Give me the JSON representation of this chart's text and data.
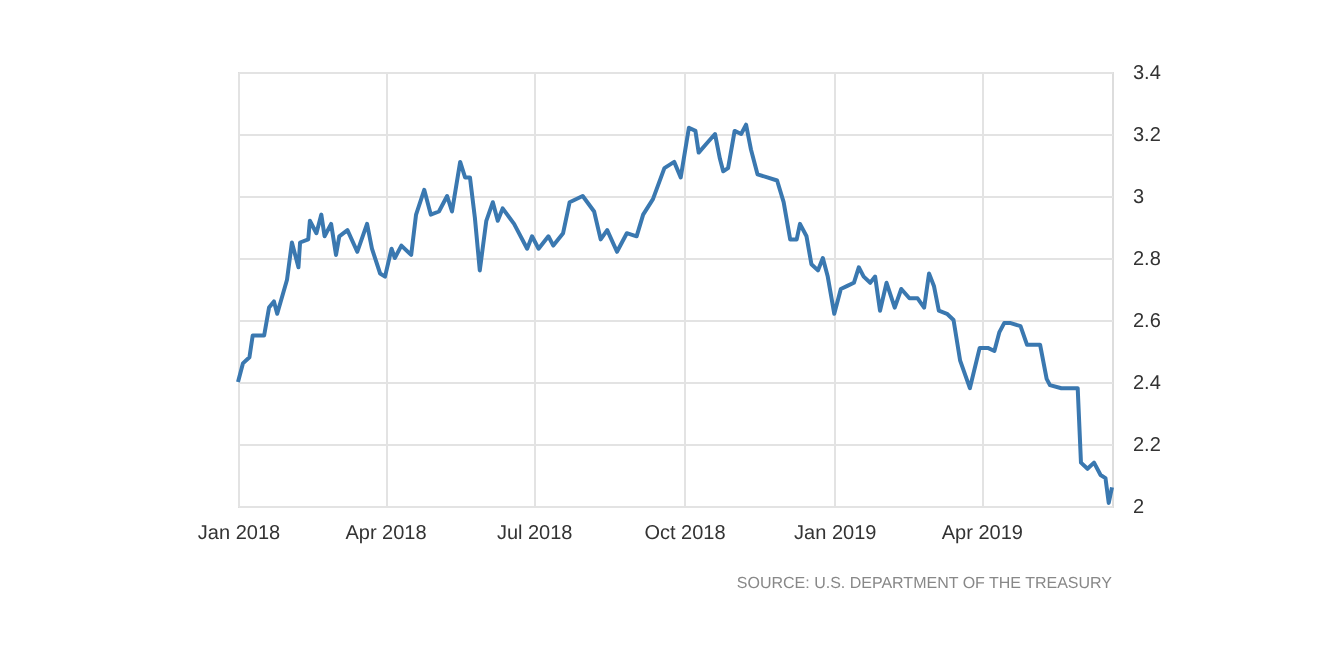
{
  "chart_data": {
    "type": "line",
    "grid": true,
    "line_style": "solid",
    "marker": "none",
    "xlim": [
      "2018-01-01",
      "2019-06-20"
    ],
    "ylim": [
      2,
      3.4
    ],
    "yticks": [
      2,
      2.2,
      2.4,
      2.6,
      2.8,
      3,
      3.2,
      3.4
    ],
    "xticks": [
      {
        "value": "2018-01-01",
        "label": "Jan 2018"
      },
      {
        "value": "2018-04-01",
        "label": "Apr 2018"
      },
      {
        "value": "2018-07-01",
        "label": "Jul 2018"
      },
      {
        "value": "2018-10-01",
        "label": "Oct 2018"
      },
      {
        "value": "2019-01-01",
        "label": "Jan 2019"
      },
      {
        "value": "2019-04-01",
        "label": "Apr 2019"
      }
    ],
    "annotations": [
      "SOURCE: U.S. DEPARTMENT OF THE TREASURY"
    ],
    "x": [
      "2018-01-01",
      "2018-01-04",
      "2018-01-08",
      "2018-01-10",
      "2018-01-17",
      "2018-01-20",
      "2018-01-23",
      "2018-01-25",
      "2018-01-31",
      "2018-02-03",
      "2018-02-07",
      "2018-02-08",
      "2018-02-13",
      "2018-02-14",
      "2018-02-18",
      "2018-02-21",
      "2018-02-23",
      "2018-02-27",
      "2018-03-02",
      "2018-03-04",
      "2018-03-09",
      "2018-03-15",
      "2018-03-21",
      "2018-03-24",
      "2018-03-29",
      "2018-04-01",
      "2018-04-05",
      "2018-04-07",
      "2018-04-11",
      "2018-04-17",
      "2018-04-20",
      "2018-04-25",
      "2018-04-29",
      "2018-05-04",
      "2018-05-09",
      "2018-05-12",
      "2018-05-17",
      "2018-05-20",
      "2018-05-23",
      "2018-05-26",
      "2018-05-29",
      "2018-06-02",
      "2018-06-06",
      "2018-06-09",
      "2018-06-12",
      "2018-06-19",
      "2018-06-27",
      "2018-06-30",
      "2018-07-04",
      "2018-07-10",
      "2018-07-13",
      "2018-07-19",
      "2018-07-23",
      "2018-07-31",
      "2018-08-07",
      "2018-08-11",
      "2018-08-15",
      "2018-08-21",
      "2018-08-27",
      "2018-09-02",
      "2018-09-06",
      "2018-09-12",
      "2018-09-19",
      "2018-09-25",
      "2018-09-29",
      "2018-10-04",
      "2018-10-08",
      "2018-10-10",
      "2018-10-15",
      "2018-10-20",
      "2018-10-23",
      "2018-10-25",
      "2018-10-28",
      "2018-11-01",
      "2018-11-05",
      "2018-11-08",
      "2018-11-11",
      "2018-11-15",
      "2018-11-21",
      "2018-11-27",
      "2018-12-01",
      "2018-12-05",
      "2018-12-09",
      "2018-12-11",
      "2018-12-15",
      "2018-12-18",
      "2018-12-22",
      "2018-12-25",
      "2018-12-28",
      "2019-01-01",
      "2019-01-05",
      "2019-01-09",
      "2019-01-13",
      "2019-01-16",
      "2019-01-19",
      "2019-01-23",
      "2019-01-26",
      "2019-01-29",
      "2019-02-02",
      "2019-02-07",
      "2019-02-11",
      "2019-02-16",
      "2019-02-21",
      "2019-02-25",
      "2019-02-28",
      "2019-03-03",
      "2019-03-06",
      "2019-03-11",
      "2019-03-15",
      "2019-03-19",
      "2019-03-25",
      "2019-03-31",
      "2019-04-05",
      "2019-04-09",
      "2019-04-12",
      "2019-04-15",
      "2019-04-19",
      "2019-04-25",
      "2019-04-29",
      "2019-05-07",
      "2019-05-11",
      "2019-05-13",
      "2019-05-20",
      "2019-05-30",
      "2019-06-01",
      "2019-06-05",
      "2019-06-09",
      "2019-06-13",
      "2019-06-16",
      "2019-06-18",
      "2019-06-20"
    ],
    "series": [
      {
        "color": "#3a78b0",
        "values": [
          2.4,
          2.46,
          2.48,
          2.55,
          2.55,
          2.64,
          2.66,
          2.62,
          2.73,
          2.85,
          2.77,
          2.85,
          2.86,
          2.92,
          2.88,
          2.94,
          2.87,
          2.91,
          2.81,
          2.87,
          2.89,
          2.82,
          2.91,
          2.83,
          2.75,
          2.74,
          2.83,
          2.8,
          2.84,
          2.81,
          2.94,
          3.02,
          2.94,
          2.95,
          3.0,
          2.95,
          3.11,
          3.06,
          3.06,
          2.93,
          2.76,
          2.92,
          2.98,
          2.92,
          2.96,
          2.91,
          2.83,
          2.87,
          2.83,
          2.87,
          2.84,
          2.88,
          2.98,
          3.0,
          2.95,
          2.86,
          2.89,
          2.82,
          2.88,
          2.87,
          2.94,
          2.99,
          3.09,
          3.11,
          3.06,
          3.22,
          3.21,
          3.14,
          3.17,
          3.2,
          3.12,
          3.08,
          3.09,
          3.21,
          3.2,
          3.23,
          3.15,
          3.07,
          3.06,
          3.05,
          2.98,
          2.86,
          2.86,
          2.91,
          2.87,
          2.78,
          2.76,
          2.8,
          2.74,
          2.62,
          2.7,
          2.71,
          2.72,
          2.77,
          2.74,
          2.72,
          2.74,
          2.63,
          2.72,
          2.64,
          2.7,
          2.67,
          2.67,
          2.64,
          2.75,
          2.71,
          2.63,
          2.62,
          2.6,
          2.47,
          2.38,
          2.51,
          2.51,
          2.5,
          2.56,
          2.59,
          2.59,
          2.58,
          2.52,
          2.52,
          2.41,
          2.39,
          2.38,
          2.38,
          2.14,
          2.12,
          2.14,
          2.1,
          2.09,
          2.01,
          2.06
        ]
      }
    ]
  }
}
